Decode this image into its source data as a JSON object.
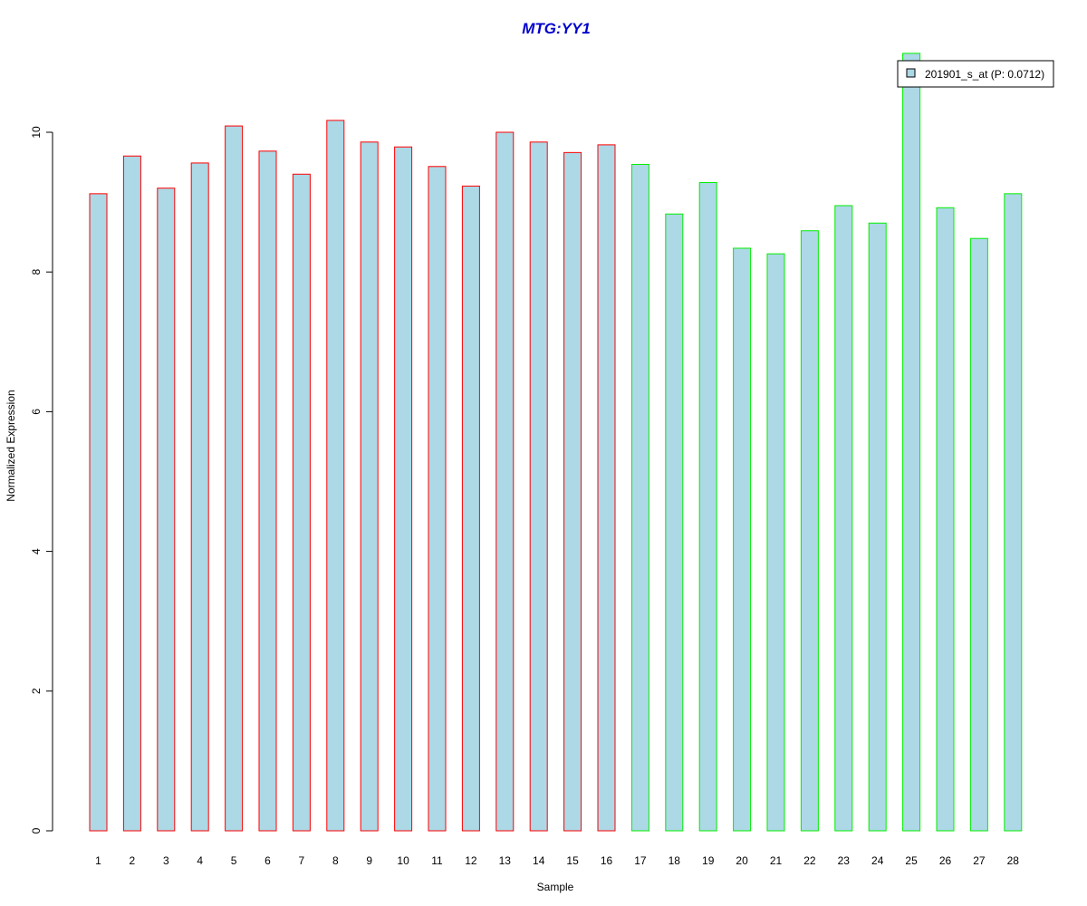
{
  "chart_data": {
    "type": "bar",
    "title": "MTG:YY1",
    "xlabel": "Sample",
    "ylabel": "Normalized Expression",
    "ylim": [
      0,
      11.2
    ],
    "yticks": [
      0,
      2,
      4,
      6,
      8,
      10
    ],
    "categories": [
      "1",
      "2",
      "3",
      "4",
      "5",
      "6",
      "7",
      "8",
      "9",
      "10",
      "11",
      "12",
      "13",
      "14",
      "15",
      "16",
      "17",
      "18",
      "19",
      "20",
      "21",
      "22",
      "23",
      "24",
      "25",
      "26",
      "27",
      "28"
    ],
    "values": [
      9.12,
      9.66,
      9.2,
      9.56,
      10.09,
      9.73,
      9.4,
      10.17,
      9.86,
      9.79,
      9.51,
      9.23,
      10.0,
      9.86,
      9.71,
      9.82,
      9.54,
      8.83,
      9.28,
      8.34,
      8.26,
      8.59,
      8.95,
      8.7,
      11.13,
      8.92,
      8.48,
      9.12
    ],
    "bar_fill": "#add8e6",
    "group_colors": [
      "#ff0000",
      "#ff0000",
      "#ff0000",
      "#ff0000",
      "#ff0000",
      "#ff0000",
      "#ff0000",
      "#ff0000",
      "#ff0000",
      "#ff0000",
      "#ff0000",
      "#ff0000",
      "#ff0000",
      "#ff0000",
      "#ff0000",
      "#ff0000",
      "#00ee00",
      "#00ee00",
      "#00ee00",
      "#00ee00",
      "#00ee00",
      "#00ee00",
      "#00ee00",
      "#00ee00",
      "#00ee00",
      "#00ee00",
      "#00ee00",
      "#00ee00"
    ],
    "title_color": "#0000cd",
    "legend": {
      "placement": "top-right",
      "entries": [
        {
          "label": "201901_s_at (P: 0.0712)",
          "color": "#add8e6"
        }
      ]
    },
    "grid": false
  }
}
